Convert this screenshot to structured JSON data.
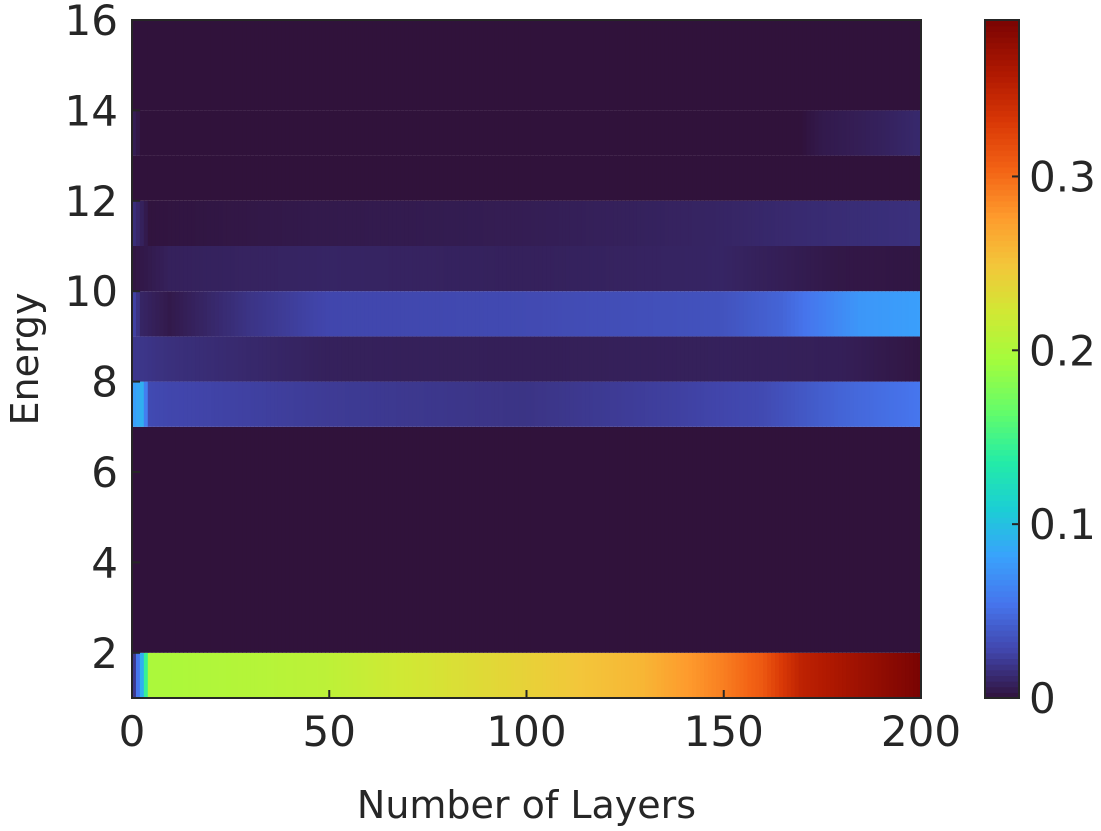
{
  "chart_data": {
    "type": "heatmap",
    "title": "",
    "xlabel": "Number of Layers",
    "ylabel": "Energy",
    "xlim": [
      0,
      200
    ],
    "ylim": [
      1,
      16
    ],
    "x_ticks": [
      0,
      50,
      100,
      150,
      200
    ],
    "x_tick_labels": [
      "0",
      "50",
      "100",
      "150",
      "200"
    ],
    "y_ticks": [
      2,
      4,
      6,
      8,
      10,
      12,
      14,
      16
    ],
    "y_tick_labels": [
      "2",
      "4",
      "6",
      "8",
      "10",
      "12",
      "14",
      "16"
    ],
    "colormap": "turbo",
    "colorbar": {
      "range": [
        0,
        0.39
      ],
      "ticks": [
        0,
        0.1,
        0.2,
        0.3
      ],
      "tick_labels": [
        "0",
        "0.1",
        "0.2",
        "0.3"
      ]
    },
    "rows": [
      {
        "energy_range": [
          1,
          2
        ],
        "profile": [
          [
            1,
            0.02
          ],
          [
            3,
            0.09
          ],
          [
            5,
            0.2
          ],
          [
            10,
            0.2
          ],
          [
            50,
            0.21
          ],
          [
            100,
            0.24
          ],
          [
            130,
            0.26
          ],
          [
            150,
            0.29
          ],
          [
            160,
            0.31
          ],
          [
            170,
            0.35
          ],
          [
            185,
            0.37
          ],
          [
            200,
            0.39
          ]
        ]
      },
      {
        "energy_range": [
          2,
          7
        ],
        "profile": [
          [
            1,
            0.0
          ],
          [
            200,
            0.0
          ]
        ]
      },
      {
        "energy_range": [
          7,
          8
        ],
        "profile": [
          [
            1,
            0.08
          ],
          [
            3,
            0.09
          ],
          [
            5,
            0.03
          ],
          [
            10,
            0.028
          ],
          [
            50,
            0.022
          ],
          [
            100,
            0.018
          ],
          [
            140,
            0.025
          ],
          [
            160,
            0.03
          ],
          [
            180,
            0.045
          ],
          [
            200,
            0.055
          ]
        ]
      },
      {
        "energy_range": [
          8,
          9
        ],
        "profile": [
          [
            1,
            0.02
          ],
          [
            10,
            0.016
          ],
          [
            50,
            0.008
          ],
          [
            100,
            0.007
          ],
          [
            150,
            0.008
          ],
          [
            180,
            0.007
          ],
          [
            200,
            0.002
          ]
        ]
      },
      {
        "energy_range": [
          9,
          10
        ],
        "profile": [
          [
            1,
            0.025
          ],
          [
            3,
            0.01
          ],
          [
            10,
            0.004
          ],
          [
            30,
            0.018
          ],
          [
            50,
            0.028
          ],
          [
            100,
            0.03
          ],
          [
            150,
            0.035
          ],
          [
            165,
            0.045
          ],
          [
            175,
            0.06
          ],
          [
            185,
            0.075
          ],
          [
            200,
            0.08
          ]
        ]
      },
      {
        "energy_range": [
          10,
          11
        ],
        "profile": [
          [
            1,
            0.002
          ],
          [
            10,
            0.008
          ],
          [
            50,
            0.01
          ],
          [
            100,
            0.008
          ],
          [
            150,
            0.01
          ],
          [
            180,
            0.003
          ],
          [
            200,
            0.002
          ]
        ]
      },
      {
        "energy_range": [
          11,
          12
        ],
        "profile": [
          [
            1,
            0.015
          ],
          [
            5,
            0.001
          ],
          [
            45,
            0.004
          ],
          [
            100,
            0.006
          ],
          [
            150,
            0.01
          ],
          [
            170,
            0.013
          ],
          [
            200,
            0.016
          ]
        ]
      },
      {
        "energy_range": [
          12,
          13
        ],
        "profile": [
          [
            1,
            0.0
          ],
          [
            200,
            0.0
          ]
        ]
      },
      {
        "energy_range": [
          13,
          14
        ],
        "profile": [
          [
            1,
            0.006
          ],
          [
            3,
            0.0
          ],
          [
            170,
            0.0
          ],
          [
            175,
            0.004
          ],
          [
            190,
            0.008
          ],
          [
            200,
            0.012
          ]
        ]
      },
      {
        "energy_range": [
          14,
          16
        ],
        "profile": [
          [
            1,
            0.0
          ],
          [
            200,
            0.0
          ]
        ]
      }
    ]
  }
}
